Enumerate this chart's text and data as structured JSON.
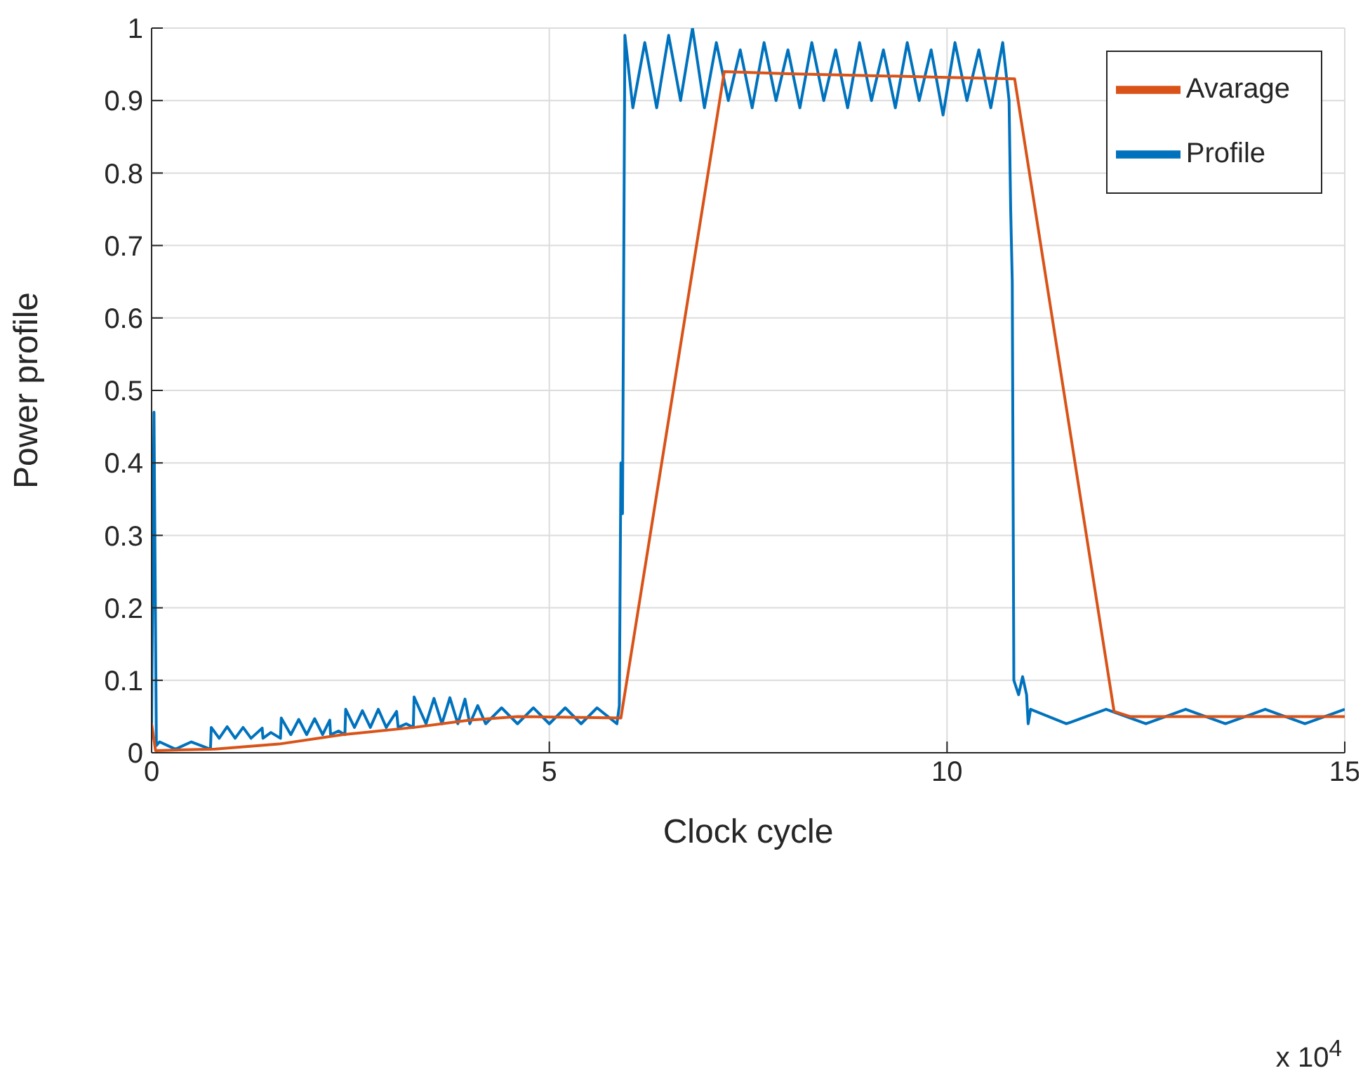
{
  "chart_data": {
    "type": "line",
    "xlabel": "Clock cycle",
    "ylabel": "Power profile",
    "xlim": [
      0,
      15
    ],
    "xticks": [
      0,
      5,
      10,
      15
    ],
    "ylim": [
      0,
      1
    ],
    "yticks": [
      0,
      0.1,
      0.2,
      0.3,
      0.4,
      0.5,
      0.6,
      0.7,
      0.8,
      0.9,
      1
    ],
    "grid": true,
    "legend": "top right",
    "annotations": [
      "x 10$^{4}$"
    ],
    "series": [
      {
        "name": "Profile",
        "color": "#0072bd",
        "x": [
          0,
          0.03,
          0.06,
          0.1,
          0.3,
          0.5,
          0.74,
          0.75,
          0.85,
          0.95,
          1.05,
          1.15,
          1.25,
          1.39,
          1.4,
          1.5,
          1.62,
          1.63,
          1.75,
          1.85,
          1.95,
          2.05,
          2.15,
          2.24,
          2.25,
          2.35,
          2.43,
          2.44,
          2.55,
          2.65,
          2.75,
          2.85,
          2.95,
          3.08,
          3.1,
          3.2,
          3.29,
          3.3,
          3.45,
          3.55,
          3.65,
          3.75,
          3.85,
          3.94,
          4.0,
          4.1,
          4.2,
          4.4,
          4.6,
          4.8,
          5.0,
          5.2,
          5.4,
          5.6,
          5.85,
          5.88,
          5.9,
          5.92,
          5.95,
          6.05,
          6.2,
          6.35,
          6.5,
          6.65,
          6.8,
          6.95,
          7.1,
          7.25,
          7.4,
          7.55,
          7.7,
          7.85,
          8.0,
          8.15,
          8.3,
          8.45,
          8.6,
          8.75,
          8.9,
          9.05,
          9.2,
          9.35,
          9.5,
          9.65,
          9.8,
          9.95,
          10.1,
          10.25,
          10.4,
          10.55,
          10.7,
          10.78,
          10.8,
          10.82,
          10.84,
          10.9,
          10.95,
          11.0,
          11.02,
          11.05,
          11.5,
          12,
          12.5,
          13,
          13.5,
          14,
          14.5,
          15
        ],
        "values": [
          0.04,
          0.47,
          0.01,
          0.015,
          0.005,
          0.015,
          0.005,
          0.035,
          0.02,
          0.036,
          0.02,
          0.035,
          0.02,
          0.034,
          0.02,
          0.028,
          0.02,
          0.048,
          0.025,
          0.046,
          0.025,
          0.047,
          0.025,
          0.045,
          0.025,
          0.03,
          0.025,
          0.06,
          0.035,
          0.058,
          0.035,
          0.06,
          0.035,
          0.057,
          0.035,
          0.04,
          0.035,
          0.077,
          0.04,
          0.075,
          0.04,
          0.076,
          0.04,
          0.074,
          0.04,
          0.065,
          0.04,
          0.062,
          0.04,
          0.062,
          0.04,
          0.062,
          0.04,
          0.062,
          0.04,
          0.065,
          0.4,
          0.33,
          0.99,
          0.89,
          0.98,
          0.89,
          0.99,
          0.9,
          1.0,
          0.89,
          0.98,
          0.9,
          0.97,
          0.89,
          0.98,
          0.9,
          0.97,
          0.89,
          0.98,
          0.9,
          0.97,
          0.89,
          0.98,
          0.9,
          0.97,
          0.89,
          0.98,
          0.9,
          0.97,
          0.88,
          0.98,
          0.9,
          0.97,
          0.89,
          0.98,
          0.9,
          0.75,
          0.65,
          0.1,
          0.08,
          0.105,
          0.08,
          0.04,
          0.06,
          0.04,
          0.06,
          0.04,
          0.06,
          0.04,
          0.06,
          0.04,
          0.06
        ]
      },
      {
        "name": "Avarage",
        "color": "#d95319",
        "x": [
          0,
          0.05,
          0.8,
          1.6,
          2.4,
          3.3,
          4.0,
          4.6,
          5.9,
          7.2,
          8,
          10,
          10.85,
          12.1,
          12.3,
          15
        ],
        "values": [
          0.04,
          0.003,
          0.005,
          0.012,
          0.025,
          0.035,
          0.045,
          0.05,
          0.048,
          0.94,
          0.937,
          0.932,
          0.93,
          0.057,
          0.05,
          0.05
        ]
      }
    ]
  }
}
